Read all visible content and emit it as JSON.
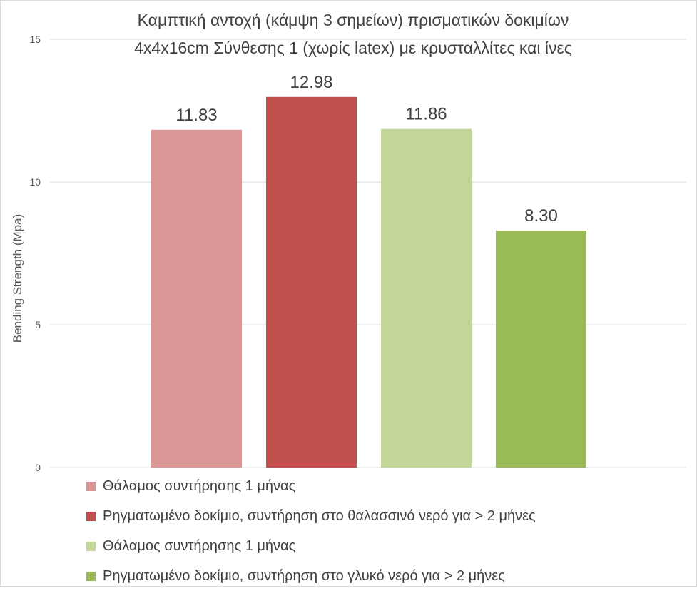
{
  "chart_data": {
    "type": "bar",
    "title": [
      "Καμπτική αντοχή (κάμψη 3 σημείων) πρισματικών δοκιμίων",
      "4x4x16cm Σύνθεσης 1 (χωρίς latex) με κρυσταλλίτες και ίνες"
    ],
    "xlabel": "",
    "ylabel": "Bending Strength (Mpa)",
    "ylim": [
      0,
      15
    ],
    "yticks": [
      0,
      5,
      10,
      15
    ],
    "grid": true,
    "legend_position": "bottom",
    "series": [
      {
        "name": "Θάλαμος συντήρησης 1 μήνας",
        "value": 11.83,
        "label": "11.83",
        "color": "#d99694"
      },
      {
        "name": "Ρηγματωμένο δοκίμιο, συντήρηση στο θαλασσινό νερό για > 2 μήνες",
        "value": 12.98,
        "label": "12.98",
        "color": "#c0504d"
      },
      {
        "name": "Θάλαμος συντήρησης 1 μήνας",
        "value": 11.86,
        "label": "11.86",
        "color": "#c4d79b"
      },
      {
        "name": "Ρηγματωμένο δοκίμιο, συντήρηση στο γλυκό νερό για > 2 μήνες",
        "value": 8.3,
        "label": "8.30",
        "color": "#9bbb59"
      }
    ]
  }
}
